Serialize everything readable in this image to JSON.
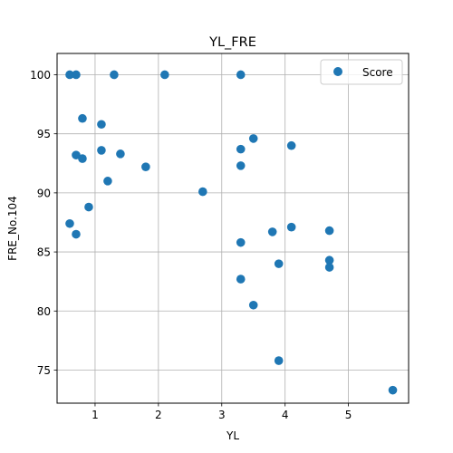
{
  "chart_data": {
    "type": "scatter",
    "title": "YL_FRE",
    "xlabel": "YL",
    "ylabel": "FRE_No.104",
    "xlim": [
      0.4,
      5.95
    ],
    "ylim": [
      72.2,
      101.8
    ],
    "xticks": [
      1,
      2,
      3,
      4,
      5
    ],
    "yticks": [
      75,
      80,
      85,
      90,
      95,
      100
    ],
    "grid": true,
    "legend": {
      "position": "top-right"
    },
    "series": [
      {
        "name": "Score",
        "color": "#1f77b4",
        "points": [
          {
            "x": 0.6,
            "y": 100.0
          },
          {
            "x": 0.7,
            "y": 100.0
          },
          {
            "x": 1.3,
            "y": 100.0
          },
          {
            "x": 2.1,
            "y": 100.0
          },
          {
            "x": 3.3,
            "y": 100.0
          },
          {
            "x": 0.8,
            "y": 96.3
          },
          {
            "x": 1.1,
            "y": 95.8
          },
          {
            "x": 3.5,
            "y": 94.6
          },
          {
            "x": 4.1,
            "y": 94.0
          },
          {
            "x": 3.3,
            "y": 93.7
          },
          {
            "x": 1.1,
            "y": 93.6
          },
          {
            "x": 1.4,
            "y": 93.3
          },
          {
            "x": 0.7,
            "y": 93.2
          },
          {
            "x": 0.8,
            "y": 92.9
          },
          {
            "x": 3.3,
            "y": 92.3
          },
          {
            "x": 1.8,
            "y": 92.2
          },
          {
            "x": 1.2,
            "y": 91.0
          },
          {
            "x": 2.7,
            "y": 90.1
          },
          {
            "x": 0.9,
            "y": 88.8
          },
          {
            "x": 0.6,
            "y": 87.4
          },
          {
            "x": 4.1,
            "y": 87.1
          },
          {
            "x": 4.7,
            "y": 86.8
          },
          {
            "x": 3.8,
            "y": 86.7
          },
          {
            "x": 0.7,
            "y": 86.5
          },
          {
            "x": 3.3,
            "y": 85.8
          },
          {
            "x": 4.7,
            "y": 84.3
          },
          {
            "x": 3.9,
            "y": 84.0
          },
          {
            "x": 4.7,
            "y": 83.7
          },
          {
            "x": 3.3,
            "y": 82.7
          },
          {
            "x": 3.5,
            "y": 80.5
          },
          {
            "x": 3.9,
            "y": 75.8
          },
          {
            "x": 5.7,
            "y": 73.3
          }
        ]
      }
    ]
  }
}
